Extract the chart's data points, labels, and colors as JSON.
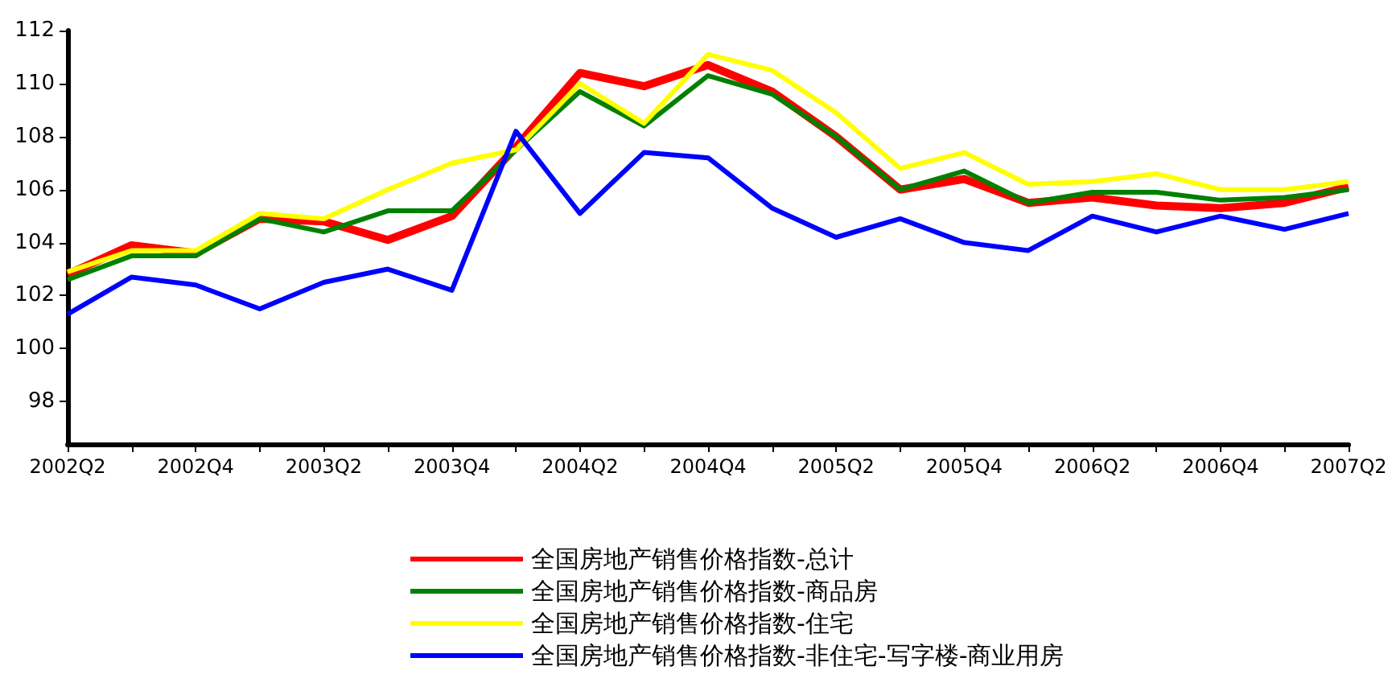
{
  "chart_data": {
    "type": "line",
    "categories": [
      "2002Q2",
      null,
      "2002Q4",
      null,
      "2003Q2",
      null,
      "2003Q4",
      null,
      "2004Q2",
      null,
      "2004Q4",
      null,
      "2005Q2",
      null,
      "2005Q4",
      null,
      "2006Q2",
      null,
      "2006Q4",
      null,
      "2007Q2"
    ],
    "series": [
      {
        "name": "全国房地产销售价格指数-总计",
        "color": "#ff0000",
        "values": [
          102.8,
          103.9,
          103.6,
          104.9,
          104.8,
          104.1,
          105.0,
          107.6,
          110.4,
          109.9,
          110.7,
          109.7,
          108.0,
          106.0,
          106.4,
          105.5,
          105.7,
          105.4,
          105.3,
          105.5,
          106.1
        ]
      },
      {
        "name": "全国房地产销售价格指数-商品房",
        "color": "#008000",
        "values": [
          102.6,
          103.5,
          103.5,
          104.9,
          104.4,
          105.2,
          105.2,
          107.5,
          109.7,
          108.4,
          110.3,
          109.6,
          108.0,
          106.0,
          106.7,
          105.5,
          105.9,
          105.9,
          105.6,
          105.7,
          106.0
        ]
      },
      {
        "name": "全国房地产销售价格指数-住宅",
        "color": "#ffff00",
        "values": [
          102.9,
          103.7,
          103.7,
          105.1,
          104.9,
          106.0,
          107.0,
          107.5,
          110.0,
          108.5,
          111.1,
          110.5,
          108.9,
          106.8,
          107.4,
          106.2,
          106.3,
          106.6,
          106.0,
          106.0,
          106.3
        ]
      },
      {
        "name": "全国房地产销售价格指数-非住宅-写字楼-商业用房",
        "color": "#0000ff",
        "values": [
          101.3,
          102.7,
          102.4,
          101.5,
          102.5,
          103.0,
          102.2,
          108.2,
          105.1,
          107.4,
          107.2,
          105.3,
          104.2,
          104.9,
          104.0,
          103.7,
          105.0,
          104.4,
          105.0,
          104.5,
          105.1
        ]
      }
    ],
    "ylim": [
      96.4,
      112
    ],
    "yticks": [
      98,
      100,
      102,
      104,
      106,
      108,
      110,
      112
    ],
    "grid": false,
    "legend": "bottom",
    "marker": "none",
    "line_style": "solid"
  }
}
